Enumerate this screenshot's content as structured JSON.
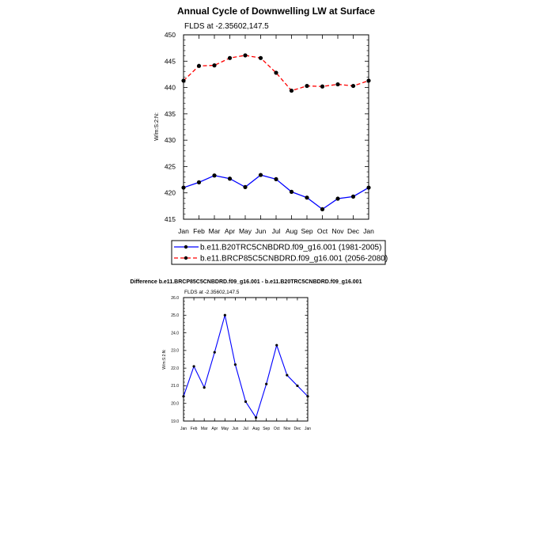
{
  "chart_data": [
    {
      "type": "line",
      "title": "Annual Cycle of Downwelling LW at Surface",
      "subtitle": "FLDS at -2.35602,147.5",
      "ylabel": "W/m:S:2:N:",
      "xlabel": "",
      "categories": [
        "Jan",
        "Feb",
        "Mar",
        "Apr",
        "May",
        "Jun",
        "Jul",
        "Aug",
        "Sep",
        "Oct",
        "Nov",
        "Dec",
        "Jan"
      ],
      "ylim": [
        415,
        450
      ],
      "yticks": [
        415,
        420,
        425,
        430,
        435,
        440,
        445,
        450
      ],
      "grid": false,
      "legend": "bottom",
      "series": [
        {
          "name": "b.e11.B20TRC5CNBDRD.f09_g16.001 (1981-2005)",
          "color": "#0000ff",
          "dash": "solid",
          "values": [
            421.0,
            422.0,
            423.3,
            422.7,
            421.1,
            423.4,
            422.6,
            420.2,
            419.1,
            416.9,
            418.9,
            419.3,
            421.0
          ]
        },
        {
          "name": "b.e11.BRCP85C5CNBDRD.f09_g16.001 (2056-2080)",
          "color": "#ff0000",
          "dash": "dashed",
          "values": [
            441.3,
            444.1,
            444.2,
            445.6,
            446.1,
            445.6,
            442.8,
            439.4,
            440.3,
            440.2,
            440.6,
            440.3,
            441.3
          ]
        }
      ]
    },
    {
      "type": "line",
      "title": "Difference b.e11.BRCP85C5CNBDRD.f09_g16.001 - b.e11.B20TRC5CNBDRD.f09_g16.001",
      "subtitle": "FLDS at -2.35602,147.5",
      "ylabel": "W/m:S:2:N:",
      "xlabel": "",
      "categories": [
        "Jan",
        "Feb",
        "Mar",
        "Apr",
        "May",
        "Jun",
        "Jul",
        "Aug",
        "Sep",
        "Oct",
        "Nov",
        "Dec",
        "Jan"
      ],
      "ylim": [
        19.0,
        26.0
      ],
      "yticks": [
        "19.0",
        "20.0",
        "21.0",
        "22.0",
        "23.0",
        "24.0",
        "25.0",
        "26.0"
      ],
      "grid": false,
      "series": [
        {
          "color": "#0000ff",
          "dash": "solid",
          "values": [
            20.4,
            22.1,
            20.9,
            22.9,
            25.0,
            22.2,
            20.1,
            19.2,
            21.1,
            23.3,
            21.6,
            21.0,
            20.4
          ]
        }
      ]
    }
  ]
}
